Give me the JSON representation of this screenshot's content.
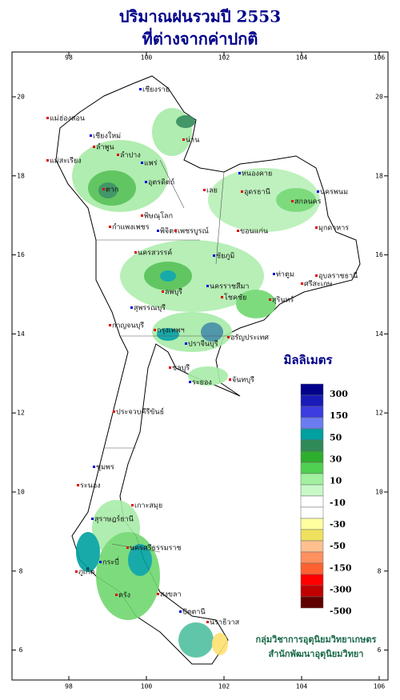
{
  "header": {
    "title": "ปริมาณฝนรวมปี 2553",
    "subtitle": "ที่ต่างจากค่าปกติ"
  },
  "map": {
    "lon_ticks": [
      98,
      100,
      102,
      104,
      106
    ],
    "lat_ticks": [
      20,
      18,
      16,
      14,
      12,
      10,
      8,
      6
    ],
    "places": [
      "เชียงราย",
      "น่าน",
      "แม่ฮ่องสอน",
      "เชียงใหม่",
      "ลำพูน",
      "ลำปาง",
      "แพร่",
      "แม่สะเรียง",
      "ตาก",
      "อุตรดิตถ์",
      "พิษณุโลก",
      "กำแพงเพชร",
      "พิจิตร",
      "เพชรบูรณ์",
      "เลย",
      "หนองคาย",
      "อุดรธานี",
      "สกลนคร",
      "นครพนม",
      "มุกดาหาร",
      "ขอนแก่น",
      "ชัยภูมิ",
      "นครสวรรค์",
      "ลพบุรี",
      "นครราชสีมา",
      "โชคชัย",
      "สุรินทร์",
      "ท่าตูม",
      "อุบลราชธานี",
      "ศรีสะเกษ",
      "สุพรรณบุรี",
      "กาญจนบุรี",
      "กรุงเทพฯ",
      "ปราจีนบุรี",
      "อรัญประเทศ",
      "ชลบุรี",
      "ระยอง",
      "จันทบุรี",
      "ประจวบคีรีขันธ์",
      "ชุมพร",
      "ระนอง",
      "เกาะสมุย",
      "สุราษฎร์ธานี",
      "นครศรีธรรมราช",
      "ภูเก็ต",
      "กระบี่",
      "ตรัง",
      "สงขลา",
      "ปัตตานี",
      "นราธิวาส"
    ]
  },
  "legend": {
    "title": "มิลลิเมตร",
    "labels": [
      300,
      150,
      50,
      30,
      10,
      -10,
      -30,
      -50,
      -150,
      -300,
      -500
    ],
    "colors": [
      "#00008b",
      "#1a1ab8",
      "#3c3ce0",
      "#6a7cf0",
      "#00a0a0",
      "#2e8b57",
      "#2eae2e",
      "#50d050",
      "#a0f0a0",
      "#c8f8c8",
      "#ffffff",
      "#ffffff",
      "#ffffa0",
      "#f0e060",
      "#ffc090",
      "#ff9060",
      "#ff6030",
      "#ff0000",
      "#c00000",
      "#600000"
    ]
  },
  "credits": [
    "กลุ่มวิชาการอุตุนิยมวิทยาเกษตร",
    "สำนักพัฒนาอุตุนิยมวิทยา"
  ]
}
